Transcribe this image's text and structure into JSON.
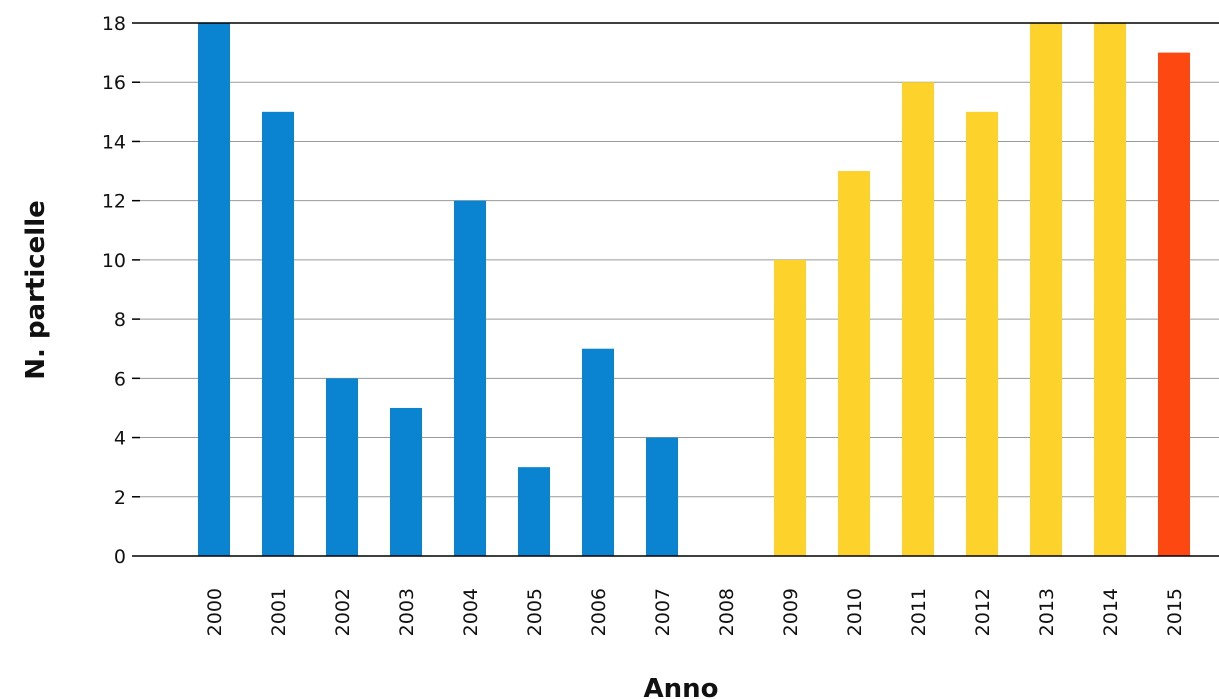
{
  "chart_data": {
    "type": "bar",
    "title": "",
    "xlabel": "Anno",
    "ylabel": "N. particelle",
    "categories": [
      "2000",
      "2001",
      "2002",
      "2003",
      "2004",
      "2005",
      "2006",
      "2007",
      "2008",
      "2009",
      "2010",
      "2011",
      "2012",
      "2013",
      "2014",
      "2015"
    ],
    "values": [
      18,
      15,
      6,
      5,
      12,
      3,
      7,
      4,
      0,
      10,
      13,
      16,
      15,
      18,
      18,
      17
    ],
    "bar_colors": [
      "#0a84d0",
      "#0a84d0",
      "#0a84d0",
      "#0a84d0",
      "#0a84d0",
      "#0a84d0",
      "#0a84d0",
      "#0a84d0",
      "#0a84d0",
      "#fdd22a",
      "#fdd22a",
      "#fdd22a",
      "#fdd22a",
      "#fdd22a",
      "#fdd22a",
      "#fd4812"
    ],
    "ylim": [
      0,
      18
    ],
    "yticks": [
      0,
      2,
      4,
      6,
      8,
      10,
      12,
      14,
      16,
      18
    ],
    "grid": true
  }
}
